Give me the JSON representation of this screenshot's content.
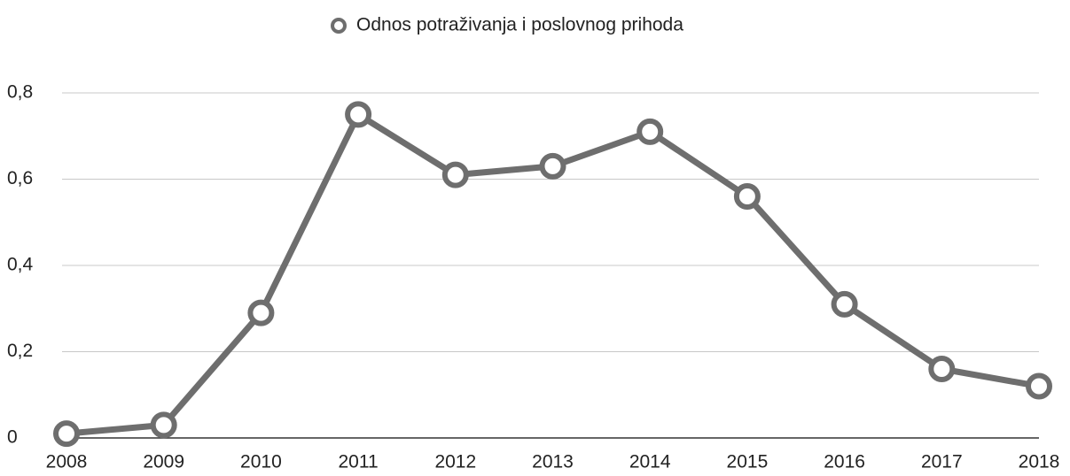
{
  "chart_data": {
    "type": "line",
    "categories": [
      "2008",
      "2009",
      "2010",
      "2011",
      "2012",
      "2013",
      "2014",
      "2015",
      "2016",
      "2017",
      "2018"
    ],
    "series": [
      {
        "name": "Odnos potraživanja i poslovnog prihoda",
        "color": "#6e6e6e",
        "values": [
          0.01,
          0.03,
          0.29,
          0.75,
          0.61,
          0.63,
          0.71,
          0.56,
          0.31,
          0.16,
          0.12
        ]
      }
    ],
    "ylim": [
      0,
      0.8
    ],
    "yticks": [
      0,
      {
        "value": 0.2,
        "label": "0,2"
      },
      {
        "value": 0.4,
        "label": "0,4"
      },
      {
        "value": 0.6,
        "label": "0,6"
      },
      {
        "value": 0.8,
        "label": "0,8"
      }
    ],
    "grid": true,
    "legend": "top"
  }
}
